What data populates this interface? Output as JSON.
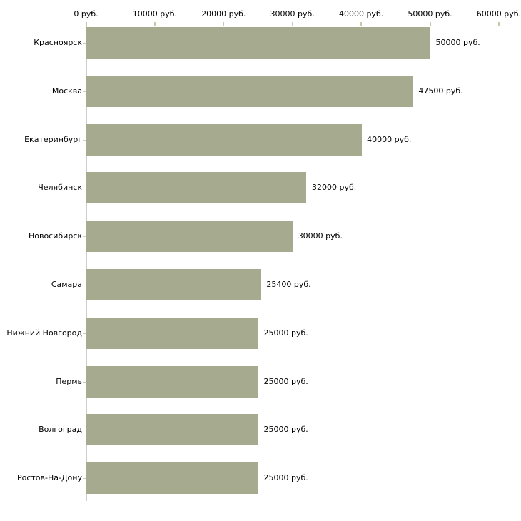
{
  "chart_data": {
    "type": "bar",
    "orientation": "horizontal",
    "title": "",
    "xlabel": "",
    "ylabel": "",
    "xlim": [
      0,
      60000
    ],
    "grid": false,
    "legend": "none",
    "x_ticks": [
      0,
      10000,
      20000,
      30000,
      40000,
      50000,
      60000
    ],
    "x_tick_labels": [
      "0 руб.",
      "10000 руб.",
      "20000 руб.",
      "30000 руб.",
      "40000 руб.",
      "50000 руб.",
      "60000 руб."
    ],
    "categories": [
      "Красноярск",
      "Москва",
      "Екатеринбург",
      "Челябинск",
      "Новосибирск",
      "Самара",
      "Нижний Новгород",
      "Пермь",
      "Волгоград",
      "Ростов-На-Дону"
    ],
    "values": [
      50000,
      47500,
      40000,
      32000,
      30000,
      25400,
      25000,
      25000,
      25000,
      25000
    ],
    "value_labels": [
      "50000 руб.",
      "47500 руб.",
      "40000 руб.",
      "32000 руб.",
      "30000 руб.",
      "25400 руб.",
      "25000 руб.",
      "25000 руб.",
      "25000 руб.",
      "25000 руб."
    ],
    "currency_suffix": "руб.",
    "colors": {
      "bar": "#a6ab90",
      "axis_line": "#cfcfc8",
      "x_tick_mark": "#c9c9a9",
      "category_tick_mark": "#cccccc",
      "text": "#000000",
      "background": "#ffffff"
    }
  }
}
